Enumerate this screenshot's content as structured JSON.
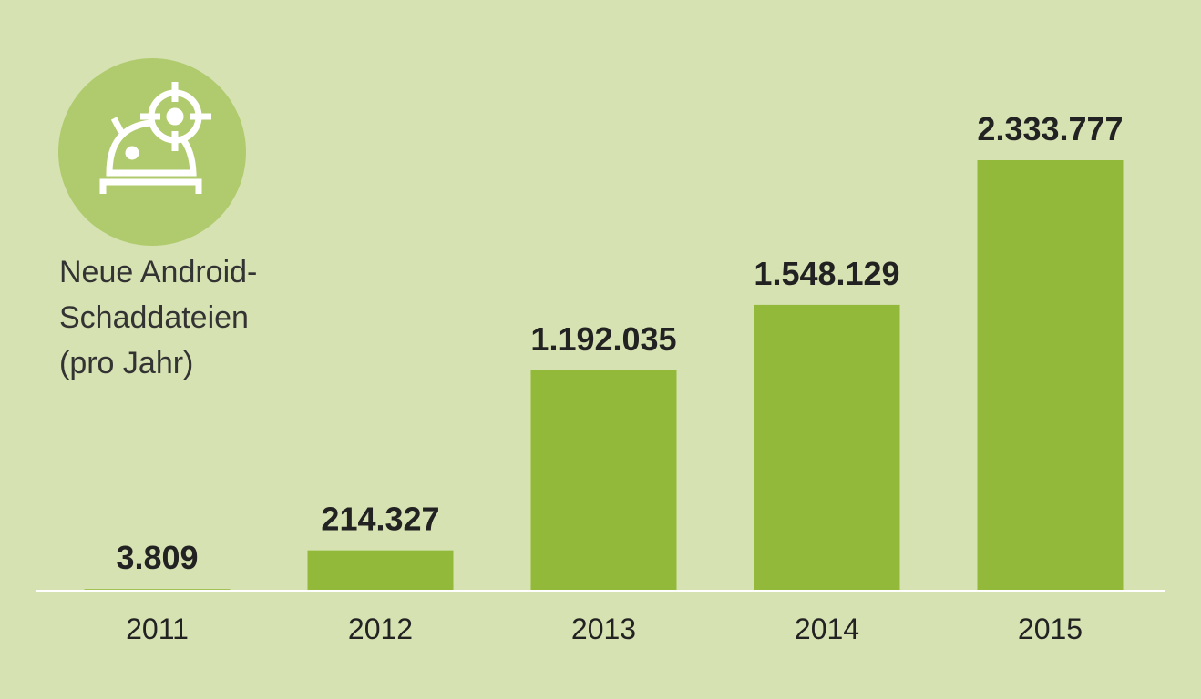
{
  "chart_data": {
    "type": "bar",
    "title": [
      "Neue Android-",
      "Schaddateien",
      "(pro Jahr)"
    ],
    "categories": [
      "2011",
      "2012",
      "2013",
      "2014",
      "2015"
    ],
    "values": [
      3809,
      214327,
      1192035,
      1548129,
      2333777
    ],
    "value_labels": [
      "3.809",
      "214.327",
      "1.192.035",
      "1.548.129",
      "2.333.777"
    ],
    "color": "#93b93a"
  }
}
